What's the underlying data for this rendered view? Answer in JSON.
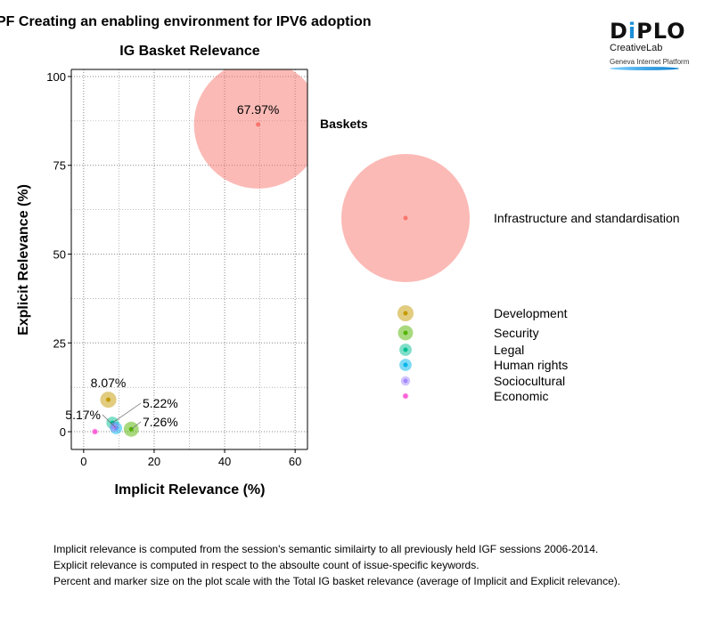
{
  "page_title": "PF Creating an enabling environment for IPV6 adoption",
  "logo": {
    "name": "DiPLO",
    "line1": "CreativeLab",
    "line2": "Geneva Internet Platform"
  },
  "chart_data": {
    "type": "scatter",
    "title": "IG Basket Relevance",
    "xlabel": "Implicit Relevance (%)",
    "ylabel": "Explicit Relevance (%)",
    "xlim": [
      -3.5,
      63.5
    ],
    "ylim": [
      -5,
      102
    ],
    "xticks": [
      0,
      20,
      40,
      60
    ],
    "yticks": [
      0,
      25,
      50,
      75,
      100
    ],
    "grid": true,
    "legend_title": "Baskets",
    "legend_position": "right",
    "series": [
      {
        "name": "Infrastructure and standardisation",
        "x": 49.5,
        "y": 86.5,
        "size": 67.97,
        "label": "67.97%",
        "color": "#F8766D"
      },
      {
        "name": "Development",
        "x": 7.0,
        "y": 9.0,
        "size": 8.07,
        "label": "8.07%",
        "color": "#C49A00"
      },
      {
        "name": "Security",
        "x": 13.5,
        "y": 0.7,
        "size": 7.26,
        "label": "7.26%",
        "color": "#53B400"
      },
      {
        "name": "Legal",
        "x": 8.2,
        "y": 2.5,
        "size": 5.22,
        "label": "5.22%",
        "color": "#00C094"
      },
      {
        "name": "Human rights",
        "x": 9.2,
        "y": 1.0,
        "size": 5.17,
        "label": "5.17%",
        "color": "#00B6EB"
      },
      {
        "name": "Sociocultural",
        "x": 8.7,
        "y": 1.3,
        "size": 3.0,
        "label": "",
        "color": "#A58AFF"
      },
      {
        "name": "Economic",
        "x": 3.2,
        "y": 0.0,
        "size": 0.5,
        "label": "",
        "color": "#FB61D7"
      }
    ]
  },
  "notes": [
    "Implicit relevance is computed from the session's semantic similairty to all previously held IGF sessions 2006-2014.",
    "Explicit relevance is computed in respect to the absoulte count of issue-specific keywords.",
    "Percent and marker size on the plot scale with the Total IG basket relevance (average of Implicit and Explicit relevance)."
  ]
}
